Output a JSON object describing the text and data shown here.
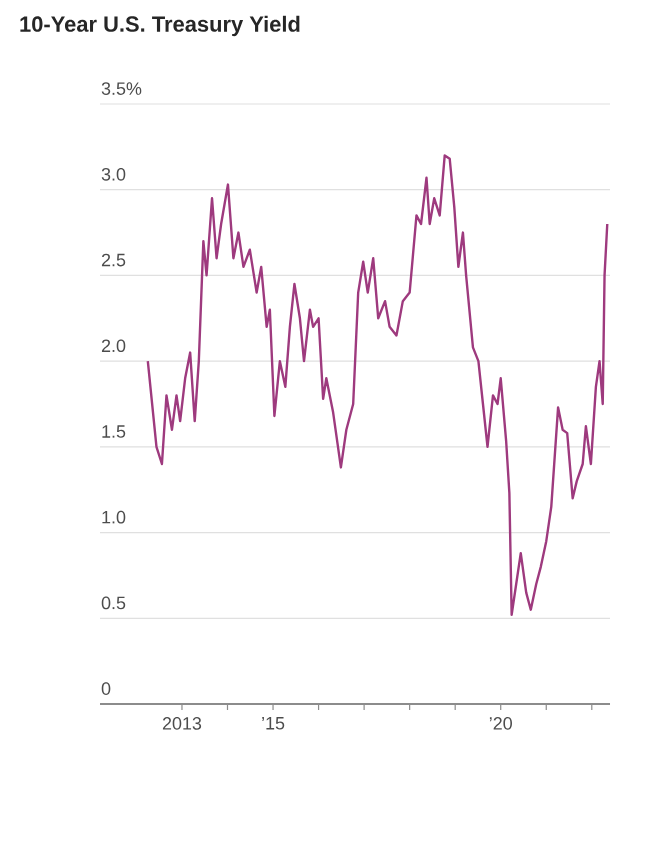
{
  "chart_data": {
    "type": "line",
    "title": "10-Year U.S. Treasury Yield",
    "color": "#9e3a7e",
    "grid": "y",
    "xlim": [
      2011.2,
      2022.4
    ],
    "ylim": [
      0,
      3.5
    ],
    "xticks": [
      {
        "value": 2013,
        "label": "2013"
      },
      {
        "value": 2014,
        "label": null
      },
      {
        "value": 2015,
        "label": "’15"
      },
      {
        "value": 2016,
        "label": null
      },
      {
        "value": 2017,
        "label": null
      },
      {
        "value": 2018,
        "label": null
      },
      {
        "value": 2019,
        "label": null
      },
      {
        "value": 2020,
        "label": "’20"
      },
      {
        "value": 2021,
        "label": null
      },
      {
        "value": 2022,
        "label": null
      }
    ],
    "yticks": [
      0,
      0.5,
      {
        "value": 1.0,
        "label": "1.0"
      },
      1.5,
      {
        "value": 2.0,
        "label": "2.0"
      },
      2.5,
      {
        "value": 3.0,
        "label": "3.0"
      },
      {
        "value": 3.5,
        "label": "3.5%"
      }
    ],
    "x": [
      2012.25,
      2012.44,
      2012.56,
      2012.66,
      2012.78,
      2012.88,
      2012.96,
      2013.07,
      2013.18,
      2013.28,
      2013.37,
      2013.47,
      2013.54,
      2013.66,
      2013.76,
      2013.86,
      2014.01,
      2014.13,
      2014.24,
      2014.35,
      2014.49,
      2014.64,
      2014.74,
      2014.86,
      2014.93,
      2015.03,
      2015.15,
      2015.27,
      2015.37,
      2015.47,
      2015.59,
      2015.68,
      2015.81,
      2015.88,
      2016.0,
      2016.1,
      2016.17,
      2016.32,
      2016.49,
      2016.61,
      2016.76,
      2016.87,
      2016.98,
      2017.08,
      2017.2,
      2017.31,
      2017.46,
      2017.56,
      2017.71,
      2017.85,
      2018.0,
      2018.15,
      2018.25,
      2018.37,
      2018.44,
      2018.54,
      2018.66,
      2018.77,
      2018.88,
      2018.98,
      2019.07,
      2019.17,
      2019.24,
      2019.39,
      2019.51,
      2019.61,
      2019.71,
      2019.83,
      2019.93,
      2020.0,
      2020.12,
      2020.19,
      2020.24,
      2020.34,
      2020.44,
      2020.56,
      2020.66,
      2020.78,
      2020.88,
      2021.0,
      2021.11,
      2021.26,
      2021.36,
      2021.46,
      2021.58,
      2021.67,
      2021.8,
      2021.87,
      2021.98,
      2022.09,
      2022.17,
      2022.24,
      2022.28,
      2022.34
    ],
    "values": [
      2.0,
      1.5,
      1.4,
      1.8,
      1.6,
      1.8,
      1.65,
      1.9,
      2.05,
      1.65,
      2.0,
      2.7,
      2.5,
      2.95,
      2.6,
      2.8,
      3.03,
      2.6,
      2.75,
      2.55,
      2.65,
      2.4,
      2.55,
      2.2,
      2.3,
      1.68,
      2.0,
      1.85,
      2.2,
      2.45,
      2.25,
      2.0,
      2.3,
      2.2,
      2.25,
      1.78,
      1.9,
      1.7,
      1.38,
      1.6,
      1.75,
      2.4,
      2.58,
      2.4,
      2.6,
      2.25,
      2.35,
      2.2,
      2.15,
      2.35,
      2.4,
      2.85,
      2.8,
      3.07,
      2.8,
      2.95,
      2.85,
      3.2,
      3.18,
      2.9,
      2.55,
      2.75,
      2.5,
      2.08,
      2.0,
      1.75,
      1.5,
      1.8,
      1.75,
      1.9,
      1.53,
      1.23,
      0.52,
      0.7,
      0.88,
      0.65,
      0.55,
      0.7,
      0.8,
      0.95,
      1.15,
      1.73,
      1.6,
      1.58,
      1.2,
      1.3,
      1.4,
      1.62,
      1.4,
      1.85,
      2.0,
      1.75,
      2.5,
      2.8
    ]
  }
}
